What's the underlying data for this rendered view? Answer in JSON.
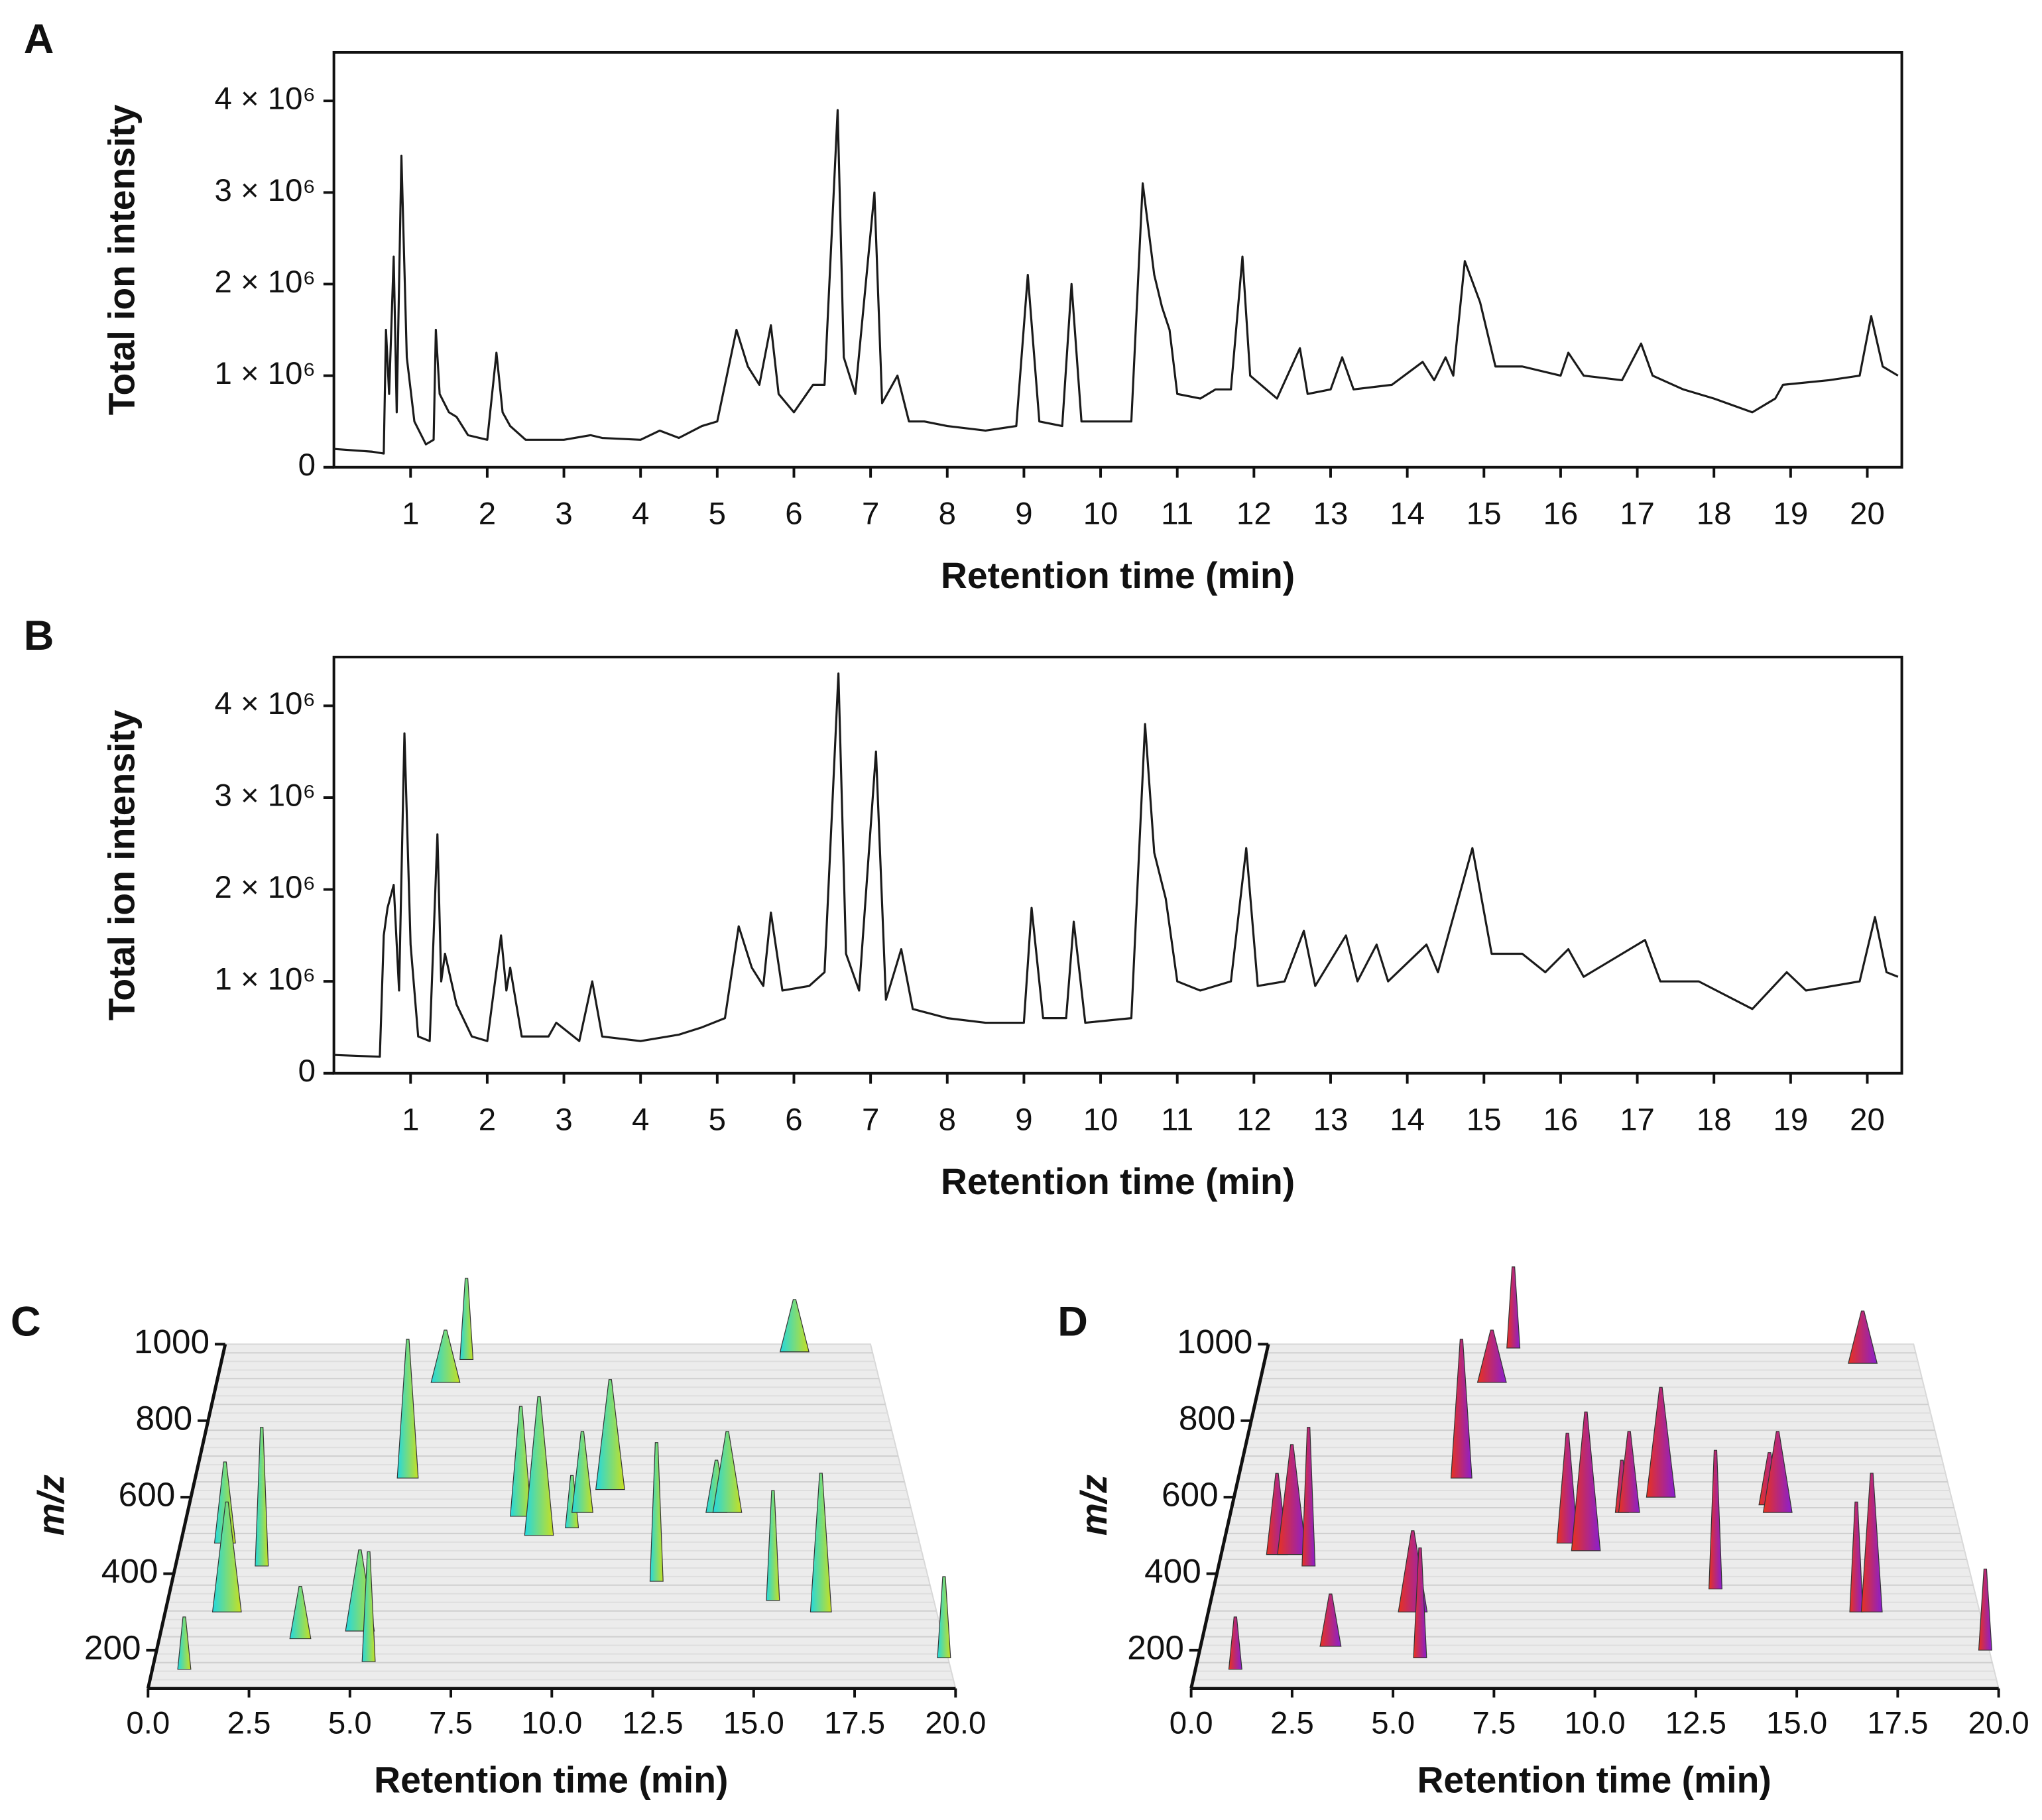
{
  "chart_data": [
    {
      "type": "line",
      "panel_label": "A",
      "y_label": "Total ion intensity",
      "x_label": "Retention time (min)",
      "color": "#1a1a1a",
      "xlim": [
        0,
        20.45
      ],
      "ylim": [
        0,
        4530000
      ],
      "xticks": [
        1,
        2,
        3,
        4,
        5,
        6,
        7,
        8,
        9,
        10,
        11,
        12,
        13,
        14,
        15,
        16,
        17,
        18,
        19,
        20
      ],
      "yticks": [
        0,
        {
          "value": 1000000,
          "label": "1 × 10⁶"
        },
        {
          "value": 2000000,
          "label": "2 × 10⁶"
        },
        {
          "value": 3000000,
          "label": "3 × 10⁶"
        },
        {
          "value": 4000000,
          "label": "4 × 10⁶"
        }
      ],
      "x": [
        0,
        0.5,
        0.65,
        0.68,
        0.72,
        0.78,
        0.82,
        0.88,
        0.95,
        1.05,
        1.2,
        1.3,
        1.33,
        1.38,
        1.5,
        1.6,
        1.75,
        2.0,
        2.12,
        2.2,
        2.3,
        2.5,
        2.8,
        3.0,
        3.35,
        3.5,
        4.0,
        4.25,
        4.5,
        4.8,
        5.0,
        5.25,
        5.4,
        5.55,
        5.7,
        5.8,
        6.0,
        6.25,
        6.4,
        6.57,
        6.65,
        6.8,
        7.05,
        7.15,
        7.35,
        7.5,
        7.7,
        8.0,
        8.5,
        8.9,
        9.05,
        9.2,
        9.5,
        9.62,
        9.75,
        10.0,
        10.4,
        10.55,
        10.7,
        10.8,
        10.9,
        11.0,
        11.3,
        11.5,
        11.7,
        11.85,
        11.95,
        12.3,
        12.6,
        12.7,
        13.0,
        13.15,
        13.3,
        13.8,
        14.2,
        14.35,
        14.5,
        14.6,
        14.75,
        14.95,
        15.15,
        15.5,
        16.0,
        16.1,
        16.3,
        16.8,
        17.05,
        17.2,
        17.6,
        18.0,
        18.5,
        18.8,
        18.9,
        19.5,
        19.9,
        20.05,
        20.2,
        20.4
      ],
      "values": [
        200000.0,
        170000.0,
        150000.0,
        1500000.0,
        800000.0,
        2300000.0,
        600000.0,
        3400000.0,
        1200000.0,
        500000.0,
        250000.0,
        300000.0,
        1500000.0,
        800000.0,
        600000.0,
        550000.0,
        350000.0,
        300000.0,
        1250000.0,
        600000.0,
        450000.0,
        300000.0,
        300000.0,
        300000.0,
        350000.0,
        320000.0,
        300000.0,
        400000.0,
        320000.0,
        450000.0,
        500000.0,
        1500000.0,
        1100000.0,
        900000.0,
        1550000.0,
        800000.0,
        600000.0,
        900000.0,
        900000.0,
        3900000.0,
        1200000.0,
        800000.0,
        3000000.0,
        700000.0,
        1000000.0,
        500000.0,
        500000.0,
        450000.0,
        400000.0,
        450000.0,
        2100000.0,
        500000.0,
        450000.0,
        2000000.0,
        500000.0,
        500000.0,
        500000.0,
        3100000.0,
        2100000.0,
        1750000.0,
        1500000.0,
        800000.0,
        750000.0,
        850000.0,
        850000.0,
        2300000.0,
        1000000.0,
        750000.0,
        1300000.0,
        800000.0,
        850000.0,
        1200000.0,
        850000.0,
        900000.0,
        1150000.0,
        950000.0,
        1200000.0,
        1000000.0,
        2250000.0,
        1800000.0,
        1100000.0,
        1100000.0,
        1000000.0,
        1250000.0,
        1000000.0,
        950000.0,
        1350000.0,
        1000000.0,
        850000.0,
        750000.0,
        600000.0,
        750000.0,
        900000.0,
        950000.0,
        1000000.0,
        1650000.0,
        1100000.0,
        1000000.0
      ]
    },
    {
      "type": "line",
      "panel_label": "B",
      "y_label": "Total ion intensity",
      "x_label": "Retention time (min)",
      "color": "#1a1a1a",
      "xlim": [
        0,
        20.45
      ],
      "ylim": [
        0,
        4530000
      ],
      "xticks": [
        1,
        2,
        3,
        4,
        5,
        6,
        7,
        8,
        9,
        10,
        11,
        12,
        13,
        14,
        15,
        16,
        17,
        18,
        19,
        20
      ],
      "yticks": [
        0,
        {
          "value": 1000000,
          "label": "1 × 10⁶"
        },
        {
          "value": 2000000,
          "label": "2 × 10⁶"
        },
        {
          "value": 3000000,
          "label": "3 × 10⁶"
        },
        {
          "value": 4000000,
          "label": "4 × 10⁶"
        }
      ],
      "x": [
        0,
        0.6,
        0.65,
        0.7,
        0.78,
        0.85,
        0.92,
        1.0,
        1.1,
        1.25,
        1.35,
        1.4,
        1.45,
        1.6,
        1.8,
        2.0,
        2.18,
        2.25,
        2.3,
        2.45,
        2.8,
        2.9,
        3.2,
        3.37,
        3.5,
        4.0,
        4.5,
        4.8,
        5.1,
        5.28,
        5.45,
        5.6,
        5.7,
        5.85,
        6.2,
        6.4,
        6.58,
        6.68,
        6.85,
        7.07,
        7.2,
        7.4,
        7.55,
        8.0,
        8.5,
        9.0,
        9.1,
        9.25,
        9.55,
        9.65,
        9.8,
        10.4,
        10.58,
        10.7,
        10.85,
        11.0,
        11.3,
        11.7,
        11.9,
        12.05,
        12.4,
        12.65,
        12.8,
        13.2,
        13.35,
        13.6,
        13.75,
        14.25,
        14.4,
        14.85,
        15.1,
        15.5,
        15.8,
        16.1,
        16.3,
        17.1,
        17.3,
        17.8,
        18.5,
        18.95,
        19.2,
        19.9,
        20.1,
        20.25,
        20.4
      ],
      "values": [
        200000.0,
        180000.0,
        1500000.0,
        1800000.0,
        2050000.0,
        900000.0,
        3700000.0,
        1400000.0,
        400000.0,
        350000.0,
        2600000.0,
        1000000.0,
        1300000.0,
        750000.0,
        400000.0,
        350000.0,
        1500000.0,
        900000.0,
        1150000.0,
        400000.0,
        400000.0,
        550000.0,
        350000.0,
        1000000.0,
        400000.0,
        350000.0,
        420000.0,
        500000.0,
        600000.0,
        1600000.0,
        1150000.0,
        950000.0,
        1750000.0,
        900000.0,
        950000.0,
        1100000.0,
        4350000.0,
        1300000.0,
        900000.0,
        3500000.0,
        800000.0,
        1350000.0,
        700000.0,
        600000.0,
        550000.0,
        550000.0,
        1800000.0,
        600000.0,
        600000.0,
        1650000.0,
        550000.0,
        600000.0,
        3800000.0,
        2400000.0,
        1900000.0,
        1000000.0,
        900000.0,
        1000000.0,
        2450000.0,
        950000.0,
        1000000.0,
        1550000.0,
        950000.0,
        1500000.0,
        1000000.0,
        1400000.0,
        1000000.0,
        1400000.0,
        1100000.0,
        2450000.0,
        1300000.0,
        1300000.0,
        1100000.0,
        1350000.0,
        1050000.0,
        1450000.0,
        1000000.0,
        1000000.0,
        700000.0,
        1100000.0,
        900000.0,
        1000000.0,
        1700000.0,
        1100000.0,
        1050000.0
      ]
    },
    {
      "type": "surface3d",
      "panel_label": "C",
      "y_label": "m/z",
      "x_label": "Retention time (min)",
      "color": "#22d8e0",
      "color2": "#c8e020",
      "xlim": [
        0,
        20
      ],
      "ylim": [
        100,
        1000
      ],
      "xticks": [
        {
          "value": 0,
          "label": "0.0"
        },
        2.5,
        {
          "value": 5,
          "label": "5.0"
        },
        7.5,
        {
          "value": 10,
          "label": "10.0"
        },
        12.5,
        {
          "value": 15,
          "label": "15.0"
        },
        17.5,
        {
          "value": 20,
          "label": "20.0"
        }
      ],
      "yticks": [
        200,
        400,
        600,
        800,
        1000
      ],
      "peaks_rt": [
        0.8,
        1.2,
        1.6,
        2.3,
        3.6,
        5.1,
        5.4,
        6.0,
        6.9,
        7.5,
        9.2,
        9.7,
        10.6,
        10.9,
        11.7,
        12.8,
        14.6,
        14.9,
        15.8,
        17.0,
        17.6,
        19.9
      ],
      "peaks_mz": [
        150,
        480,
        300,
        420,
        230,
        250,
        170,
        650,
        900,
        960,
        550,
        500,
        520,
        560,
        620,
        380,
        560,
        560,
        330,
        300,
        980,
        180
      ]
    },
    {
      "type": "surface3d",
      "panel_label": "D",
      "y_label": "m/z",
      "x_label": "Retention time (min)",
      "color": "#e8321e",
      "color2": "#8a1fd0",
      "xlim": [
        0,
        20
      ],
      "ylim": [
        100,
        1000
      ],
      "xticks": [
        {
          "value": 0,
          "label": "0.0"
        },
        2.5,
        {
          "value": 5,
          "label": "5.0"
        },
        7.5,
        {
          "value": 10,
          "label": "10.0"
        },
        12.5,
        {
          "value": 15,
          "label": "15.0"
        },
        17.5,
        {
          "value": 20,
          "label": "20.0"
        }
      ],
      "yticks": [
        200,
        400,
        600,
        800,
        1000
      ],
      "peaks_rt": [
        1.0,
        1.5,
        1.9,
        2.4,
        3.3,
        5.3,
        5.6,
        6.3,
        7.0,
        7.6,
        9.3,
        9.8,
        10.8,
        11.0,
        11.9,
        13.2,
        14.9,
        15.1,
        16.8,
        17.2,
        18.3,
        19.9
      ],
      "peaks_mz": [
        150,
        450,
        450,
        420,
        210,
        300,
        180,
        650,
        900,
        990,
        480,
        460,
        560,
        560,
        600,
        360,
        580,
        560,
        300,
        300,
        950,
        200
      ]
    }
  ]
}
